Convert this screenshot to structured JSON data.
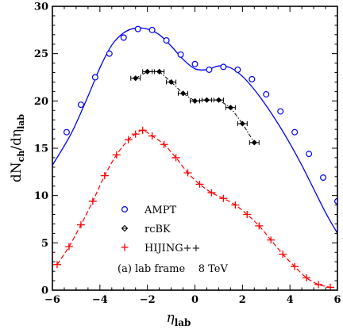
{
  "chart_data": {
    "type": "line",
    "xlabel": {
      "main": "η",
      "sub": "lab"
    },
    "ylabel": {
      "main": "dN",
      "sub1": "ch",
      "mid": "/dη",
      "sub2": "lab"
    },
    "xlim": [
      -6,
      6
    ],
    "ylim": [
      0,
      30
    ],
    "xticks": [
      -6,
      -4,
      -2,
      0,
      2,
      4,
      6
    ],
    "yticks": [
      0,
      5,
      10,
      15,
      20,
      25,
      30
    ],
    "grid": false,
    "legend_position": "lower-center",
    "annotation": "(a) lab frame    8 TeV",
    "series": [
      {
        "name": "AMPT",
        "color": "#0000ff",
        "marker": "open-circle",
        "line": "solid",
        "curve": [
          [
            -6.0,
            13.2
          ],
          [
            -5.2,
            16.6
          ],
          [
            -4.5,
            20.5
          ],
          [
            -4.0,
            23.5
          ],
          [
            -3.5,
            25.9
          ],
          [
            -3.0,
            27.2
          ],
          [
            -2.5,
            27.7
          ],
          [
            -2.0,
            27.6
          ],
          [
            -1.5,
            27.0
          ],
          [
            -1.0,
            25.8
          ],
          [
            -0.5,
            24.4
          ],
          [
            0.0,
            23.4
          ],
          [
            0.5,
            23.3
          ],
          [
            1.0,
            23.7
          ],
          [
            1.5,
            23.5
          ],
          [
            2.0,
            22.6
          ],
          [
            2.5,
            21.2
          ],
          [
            3.0,
            19.5
          ],
          [
            3.5,
            17.6
          ],
          [
            4.0,
            15.5
          ],
          [
            4.5,
            13.2
          ],
          [
            5.0,
            10.7
          ],
          [
            5.5,
            8.2
          ],
          [
            6.0,
            6.0
          ]
        ],
        "markers": [
          [
            -5.4,
            16.7
          ],
          [
            -4.8,
            19.6
          ],
          [
            -4.2,
            22.5
          ],
          [
            -3.6,
            25.0
          ],
          [
            -3.0,
            26.7
          ],
          [
            -2.4,
            27.6
          ],
          [
            -1.8,
            27.5
          ],
          [
            -1.2,
            26.4
          ],
          [
            -0.6,
            24.9
          ],
          [
            0.0,
            23.9
          ],
          [
            0.6,
            23.3
          ],
          [
            1.2,
            23.6
          ],
          [
            1.8,
            23.3
          ],
          [
            2.4,
            22.3
          ],
          [
            3.0,
            20.7
          ],
          [
            3.6,
            18.9
          ],
          [
            4.2,
            16.7
          ],
          [
            4.8,
            14.4
          ],
          [
            5.4,
            11.9
          ],
          [
            6.0,
            9.4
          ]
        ]
      },
      {
        "name": "rcBK",
        "color": "#000000",
        "marker": "diamond",
        "line": "dash-dot",
        "points": [
          [
            -2.5,
            22.4
          ],
          [
            -2.0,
            23.1
          ],
          [
            -1.5,
            23.1
          ],
          [
            -1.0,
            22.0
          ],
          [
            -0.5,
            20.8
          ],
          [
            0.0,
            20.0
          ],
          [
            0.5,
            20.1
          ],
          [
            1.0,
            20.1
          ],
          [
            1.5,
            19.3
          ],
          [
            2.0,
            17.6
          ],
          [
            2.5,
            15.6
          ]
        ]
      },
      {
        "name": "HIJING++",
        "color": "#ff0000",
        "marker": "cross",
        "line": "dashed",
        "points": [
          [
            -5.8,
            2.7
          ],
          [
            -5.3,
            4.6
          ],
          [
            -4.8,
            6.9
          ],
          [
            -4.3,
            9.4
          ],
          [
            -3.8,
            12.1
          ],
          [
            -3.3,
            14.3
          ],
          [
            -2.8,
            15.9
          ],
          [
            -2.5,
            16.5
          ],
          [
            -2.2,
            16.9
          ],
          [
            -1.8,
            16.3
          ],
          [
            -1.3,
            15.4
          ],
          [
            -0.8,
            14.0
          ],
          [
            -0.3,
            12.4
          ],
          [
            0.2,
            11.2
          ],
          [
            0.7,
            10.3
          ],
          [
            1.2,
            9.7
          ],
          [
            1.7,
            9.0
          ],
          [
            2.2,
            8.0
          ],
          [
            2.7,
            6.8
          ],
          [
            3.2,
            5.3
          ],
          [
            3.7,
            3.8
          ],
          [
            4.2,
            2.5
          ],
          [
            4.7,
            1.3
          ],
          [
            5.2,
            0.6
          ],
          [
            5.7,
            0.3
          ]
        ]
      }
    ]
  }
}
